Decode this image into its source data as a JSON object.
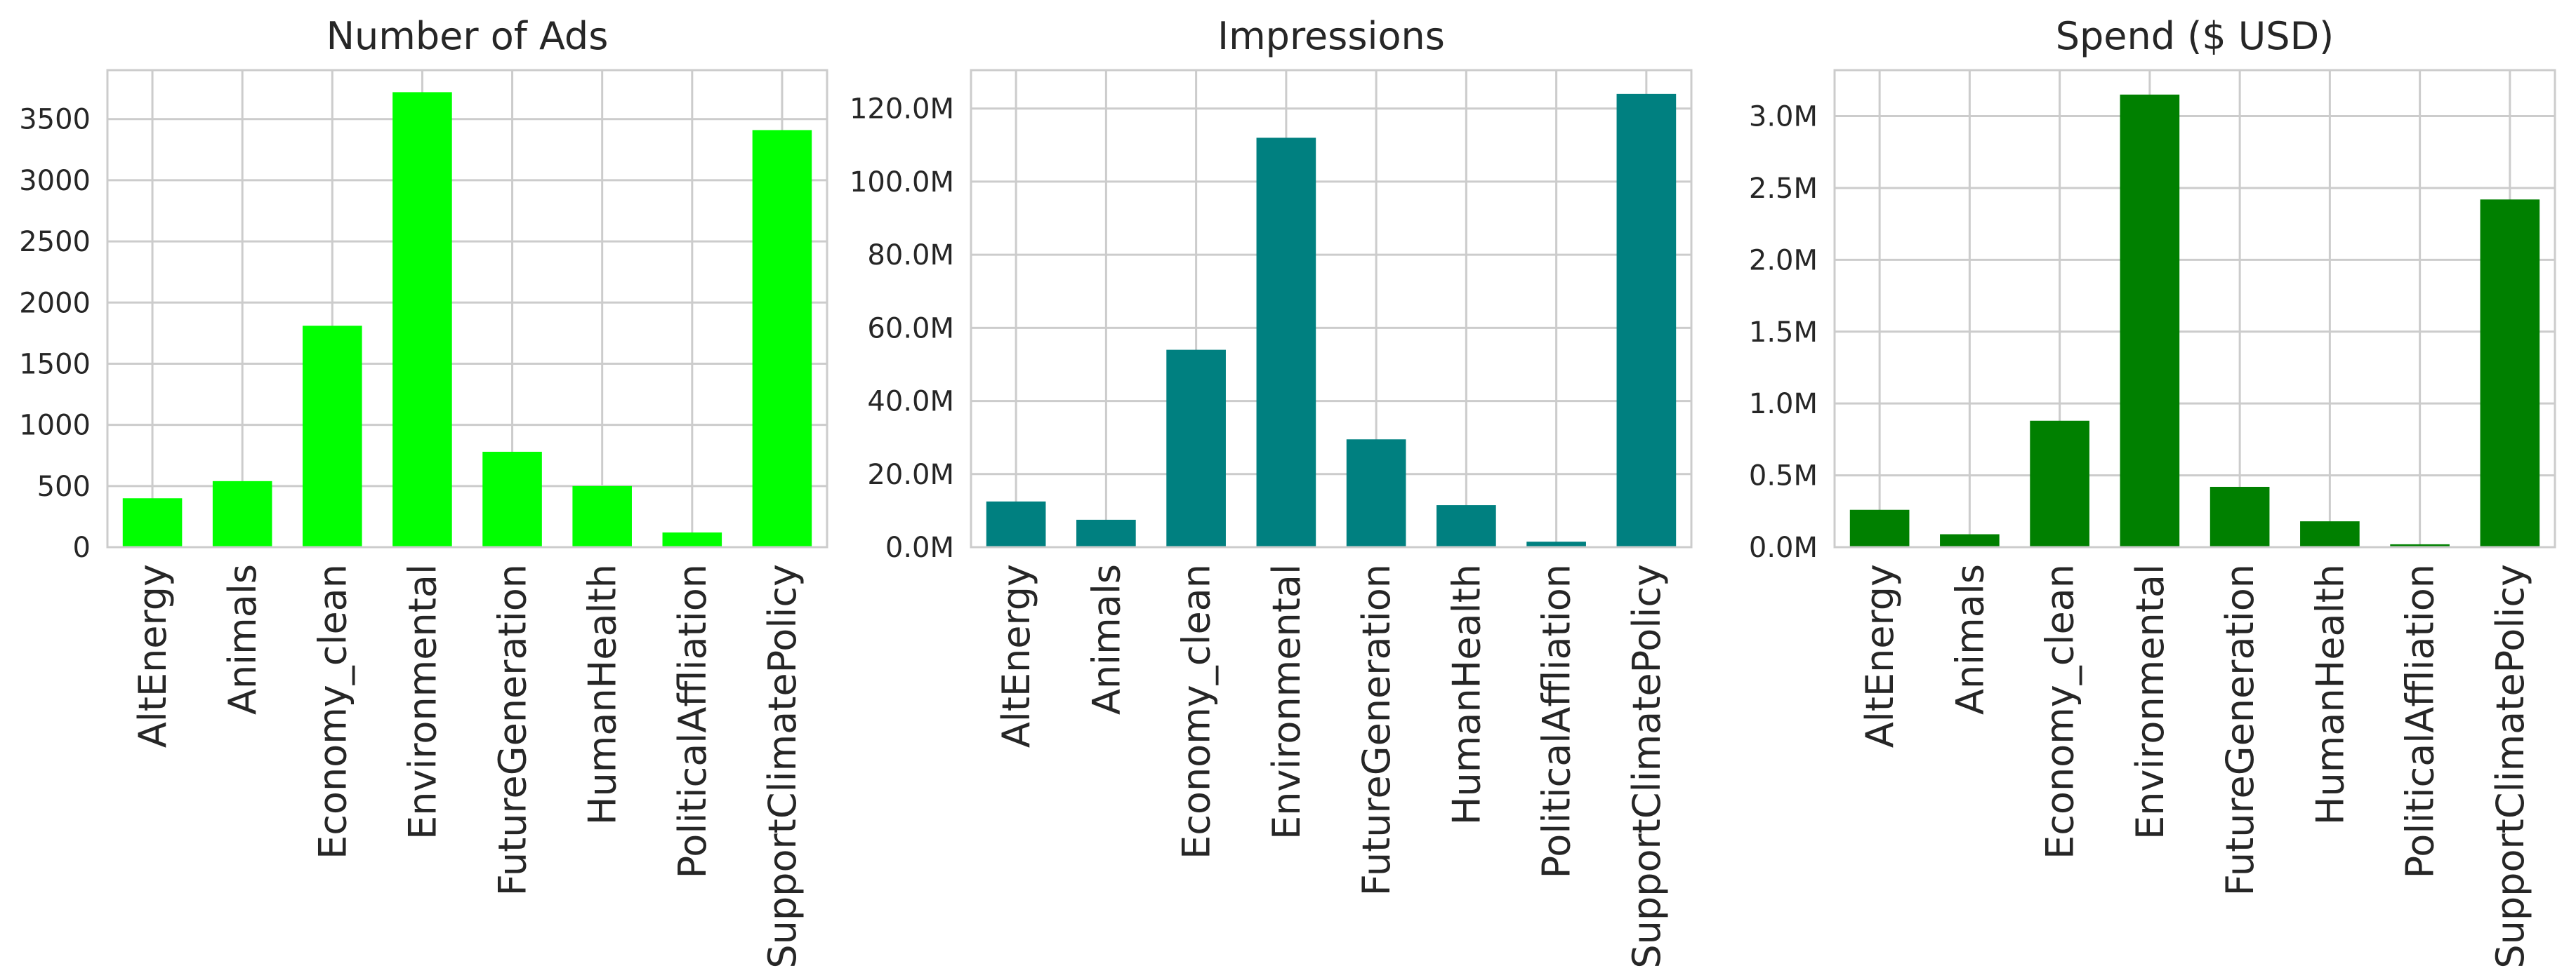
{
  "chart_data": [
    {
      "type": "bar",
      "title": "Number of Ads",
      "xlabel": "",
      "ylabel": "",
      "categories": [
        "AltEnergy",
        "Animals",
        "Economy_clean",
        "Environmental",
        "FutureGeneration",
        "HumanHealth",
        "PoliticalAffliation",
        "SupportClimatePolicy"
      ],
      "values": [
        400,
        540,
        1810,
        3720,
        780,
        500,
        120,
        3410
      ],
      "ylim": [
        0,
        3900
      ],
      "yticks": [
        0,
        500,
        1000,
        1500,
        2000,
        2500,
        3000,
        3500
      ],
      "ytick_labels": [
        "0",
        "500",
        "1000",
        "1500",
        "2000",
        "2500",
        "3000",
        "3500"
      ],
      "color": "#00ff00",
      "grid": true,
      "legend": "none"
    },
    {
      "type": "bar",
      "title": "Impressions",
      "xlabel": "",
      "ylabel": "",
      "categories": [
        "AltEnergy",
        "Animals",
        "Economy_clean",
        "Environmental",
        "FutureGeneration",
        "HumanHealth",
        "PoliticalAffliation",
        "SupportClimatePolicy"
      ],
      "values": [
        12500000,
        7500000,
        54000000,
        112000000,
        29500000,
        11500000,
        1500000,
        124000000
      ],
      "ylim": [
        0,
        130500000
      ],
      "yticks": [
        0,
        20000000,
        40000000,
        60000000,
        80000000,
        100000000,
        120000000
      ],
      "ytick_labels": [
        "0.0M",
        "20.0M",
        "40.0M",
        "60.0M",
        "80.0M",
        "100.0M",
        "120.0M"
      ],
      "color": "#008080",
      "grid": true,
      "legend": "none"
    },
    {
      "type": "bar",
      "title": "Spend ($ USD)",
      "xlabel": "",
      "ylabel": "",
      "categories": [
        "AltEnergy",
        "Animals",
        "Economy_clean",
        "Environmental",
        "FutureGeneration",
        "HumanHealth",
        "PoliticalAffliation",
        "SupportClimatePolicy"
      ],
      "values": [
        260000,
        90000,
        880000,
        3150000,
        420000,
        180000,
        20000,
        2420000
      ],
      "ylim": [
        0,
        3320000
      ],
      "yticks": [
        0,
        500000,
        1000000,
        1500000,
        2000000,
        2500000,
        3000000
      ],
      "ytick_labels": [
        "0.0M",
        "0.5M",
        "1.0M",
        "1.5M",
        "2.0M",
        "2.5M",
        "3.0M"
      ],
      "color": "#008000",
      "grid": true,
      "legend": "none"
    }
  ]
}
